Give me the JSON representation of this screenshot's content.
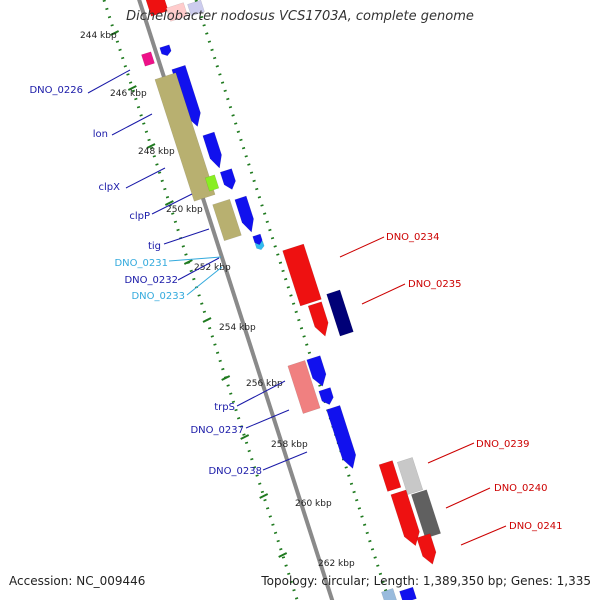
{
  "title": "Dichelobacter nodosus VCS1703A, complete genome",
  "footer": {
    "accession": "Accession: NC_009446",
    "summary": "Topology: circular; Length: 1,389,350 bp; Genes: 1,335"
  },
  "colors": {
    "backbone": "#8a8a8a",
    "tick": "#1f7a1f",
    "leftLabel": "#1a1aa8",
    "lightLabel": "#33aadd",
    "rightLabel": "#cc0000",
    "kbpLabel": "#222222"
  },
  "kbp_labels": [
    "244 kbp",
    "246 kbp",
    "248 kbp",
    "250 kbp",
    "252 kbp",
    "254 kbp",
    "256 kbp",
    "258 kbp",
    "260 kbp",
    "262 kbp"
  ],
  "gene_labels": [
    {
      "text": "DNO_0226",
      "color": "leftLabel"
    },
    {
      "text": "lon",
      "color": "leftLabel"
    },
    {
      "text": "clpX",
      "color": "leftLabel"
    },
    {
      "text": "clpP",
      "color": "leftLabel"
    },
    {
      "text": "tig",
      "color": "leftLabel"
    },
    {
      "text": "DNO_0231",
      "color": "lightLabel"
    },
    {
      "text": "DNO_0232",
      "color": "leftLabel"
    },
    {
      "text": "DNO_0233",
      "color": "lightLabel"
    },
    {
      "text": "trpS",
      "color": "leftLabel"
    },
    {
      "text": "DNO_0237",
      "color": "leftLabel"
    },
    {
      "text": "DNO_0238",
      "color": "leftLabel"
    },
    {
      "text": "DNO_0234",
      "color": "rightLabel"
    },
    {
      "text": "DNO_0235",
      "color": "rightLabel"
    },
    {
      "text": "DNO_0239",
      "color": "rightLabel"
    },
    {
      "text": "DNO_0240",
      "color": "rightLabel"
    },
    {
      "text": "DNO_0241",
      "color": "rightLabel"
    }
  ],
  "features": [
    {
      "name": "top-red-feature",
      "color": "#ee1111"
    },
    {
      "name": "top-pink-feature",
      "color": "#ffcccc"
    },
    {
      "name": "top-lilac-feature",
      "color": "#ccccee"
    },
    {
      "name": "dno-0226-feature",
      "color": "#ee1188"
    },
    {
      "name": "small-blue-feature-1",
      "color": "#1111ee"
    },
    {
      "name": "lon-feature-blue",
      "color": "#1111ee"
    },
    {
      "name": "olive-cluster-feature",
      "color": "#b8b070"
    },
    {
      "name": "clpx-feature",
      "color": "#1111ee"
    },
    {
      "name": "green-feature",
      "color": "#88ee22"
    },
    {
      "name": "clpp-feature",
      "color": "#1111ee"
    },
    {
      "name": "olive-feature-2",
      "color": "#b8b070"
    },
    {
      "name": "tig-feature",
      "color": "#1111ee"
    },
    {
      "name": "dno-0231-feature",
      "color": "#33bbee"
    },
    {
      "name": "dno-0232-feature",
      "color": "#1111ee"
    },
    {
      "name": "dno-0234-feature",
      "color": "#ee1111"
    },
    {
      "name": "dno-0234b-feature",
      "color": "#ee1111"
    },
    {
      "name": "dno-0235-feature",
      "color": "#000077"
    },
    {
      "name": "trps-feature-pink",
      "color": "#f08080"
    },
    {
      "name": "dno-0237-feature",
      "color": "#1111ee"
    },
    {
      "name": "dno-0237b-feature",
      "color": "#1111ee"
    },
    {
      "name": "dno-0238-feature",
      "color": "#1111ee"
    },
    {
      "name": "dno-0239-feature",
      "color": "#ee1111"
    },
    {
      "name": "dno-0240-feature-light",
      "color": "#c8c8c8"
    },
    {
      "name": "dno-0240-feature-red",
      "color": "#ee1111"
    },
    {
      "name": "dno-0241-feature",
      "color": "#606060"
    },
    {
      "name": "dno-0241b-feature",
      "color": "#ee1111"
    },
    {
      "name": "bottom-blue-feature",
      "color": "#1111ee"
    },
    {
      "name": "bottom-light-feature",
      "color": "#99bbdd"
    }
  ]
}
